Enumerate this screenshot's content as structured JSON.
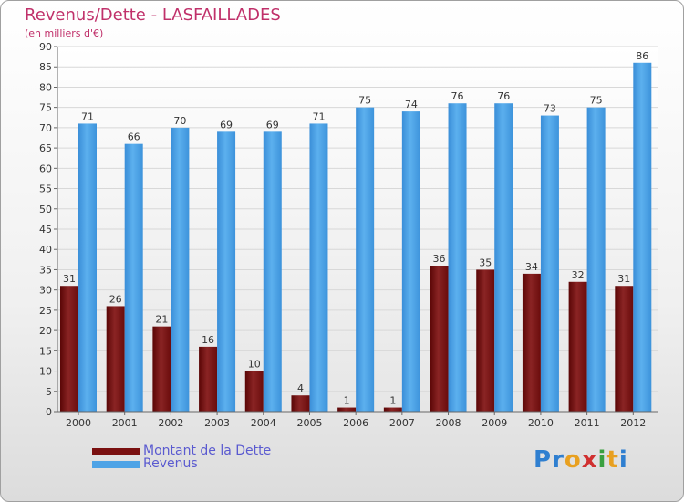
{
  "header": {
    "title": "Revenus/Dette - LASFAILLADES",
    "subtitle": "(en milliers d'€)"
  },
  "legend": [
    {
      "label": "Montant de la Dette",
      "color": "#7a1010"
    },
    {
      "label": "Revenus",
      "color": "#4ea3e6"
    }
  ],
  "logo": {
    "text": "Proxiti",
    "letters": [
      {
        "ch": "P",
        "color": "#2f7fd0"
      },
      {
        "ch": "r",
        "color": "#2f7fd0"
      },
      {
        "ch": "o",
        "color": "#e8a020"
      },
      {
        "ch": "x",
        "color": "#d03030"
      },
      {
        "ch": "i",
        "color": "#3aa040"
      },
      {
        "ch": "t",
        "color": "#e8a020"
      },
      {
        "ch": "i",
        "color": "#2f7fd0"
      }
    ]
  },
  "chart_data": {
    "type": "bar",
    "title": "Revenus/Dette - LASFAILLADES",
    "subtitle": "(en milliers d'€)",
    "categories": [
      "2000",
      "2001",
      "2002",
      "2003",
      "2004",
      "2005",
      "2006",
      "2007",
      "2008",
      "2009",
      "2010",
      "2011",
      "2012"
    ],
    "series": [
      {
        "name": "Montant de la Dette",
        "color": "#7a1010",
        "values": [
          31,
          26,
          21,
          16,
          10,
          4,
          1,
          1,
          36,
          35,
          34,
          32,
          31
        ]
      },
      {
        "name": "Revenus",
        "color": "#4ea3e6",
        "values": [
          71,
          66,
          70,
          69,
          69,
          71,
          75,
          74,
          76,
          76,
          73,
          75,
          86
        ]
      }
    ],
    "ylim": [
      0,
      90
    ],
    "yticks": [
      0,
      5,
      10,
      15,
      20,
      25,
      30,
      35,
      40,
      45,
      50,
      55,
      60,
      65,
      70,
      75,
      80,
      85,
      90
    ],
    "grid": true,
    "legend_position": "bottom-left"
  }
}
